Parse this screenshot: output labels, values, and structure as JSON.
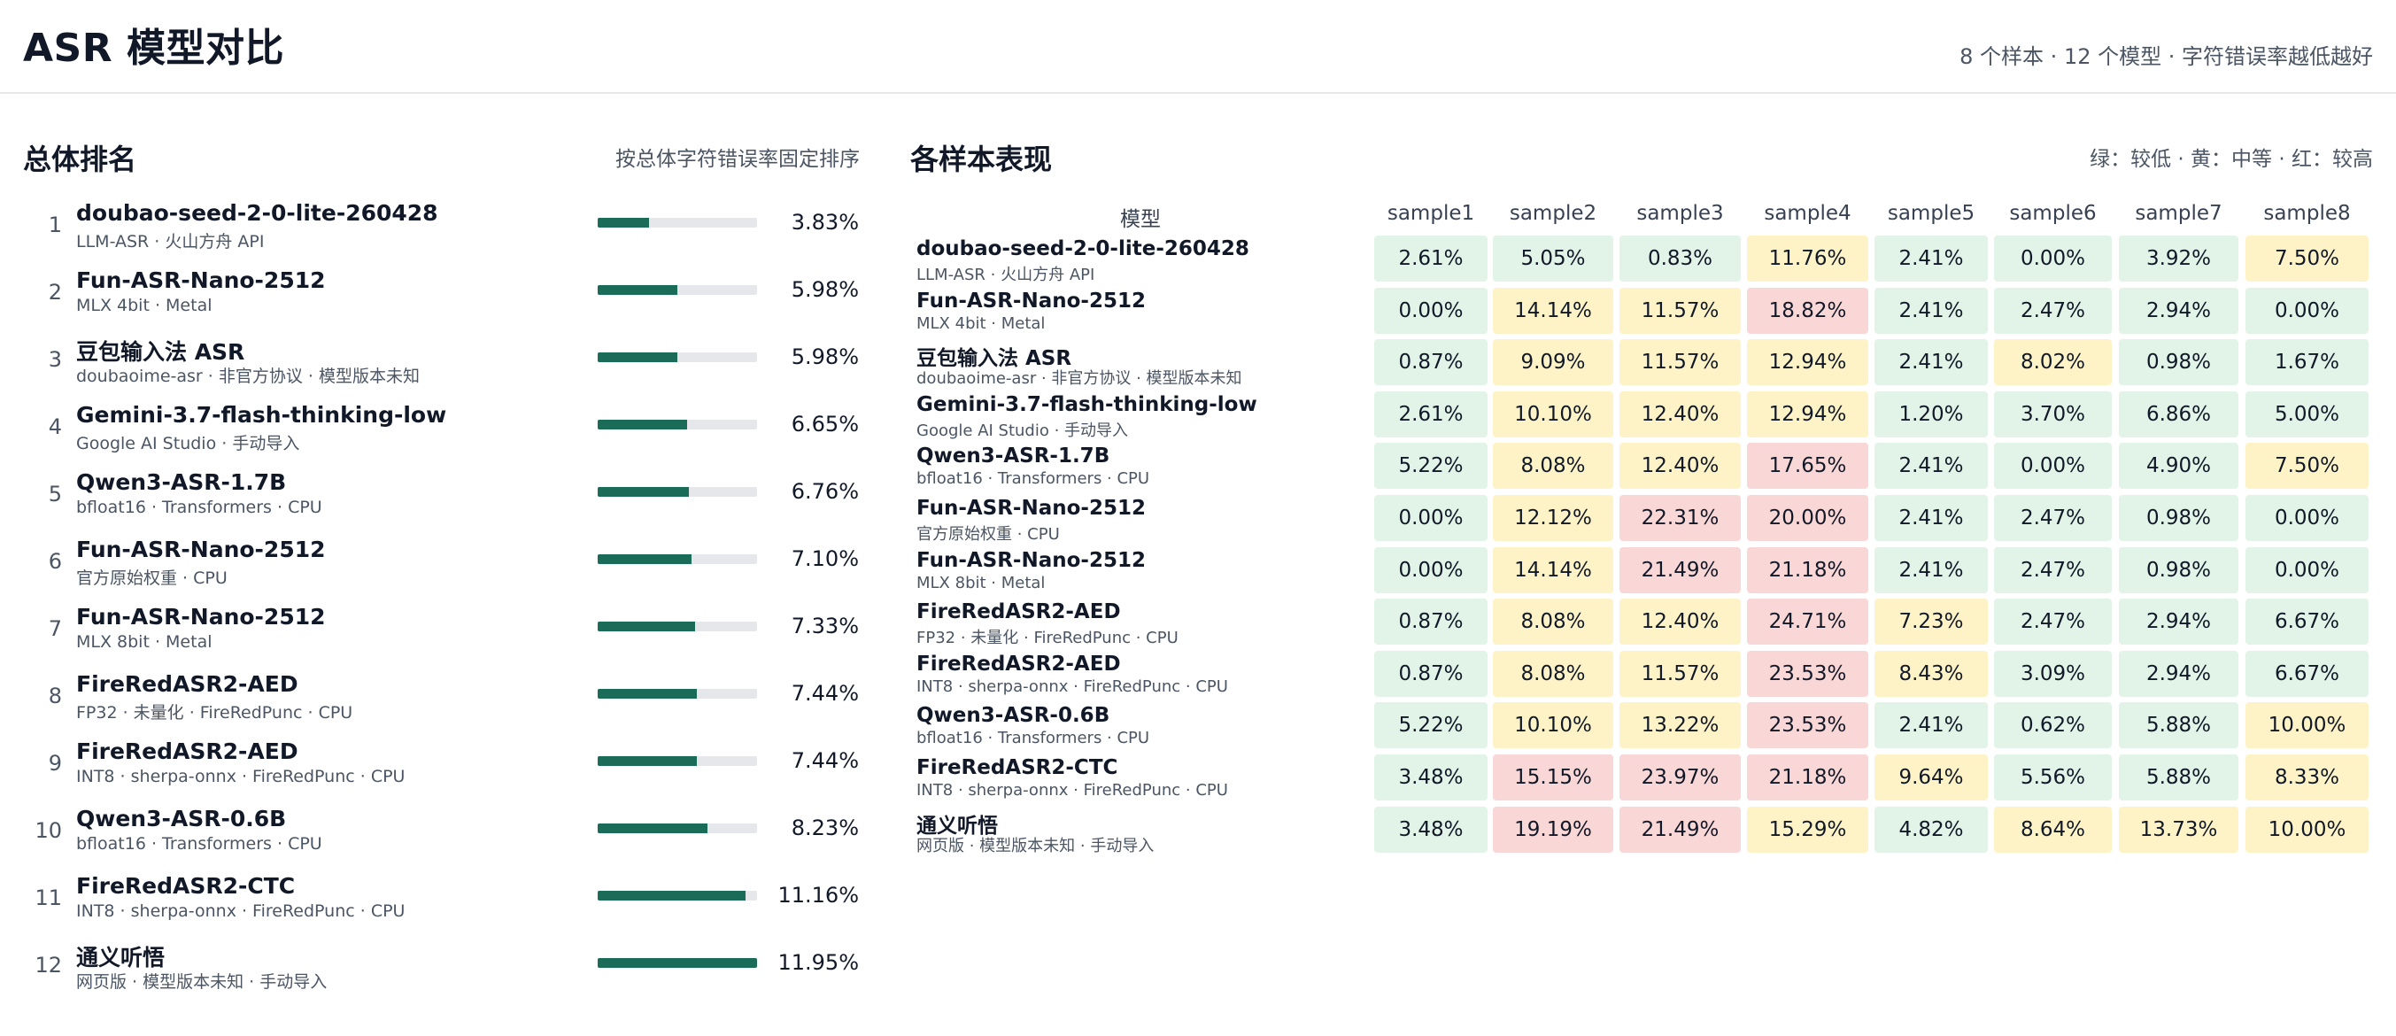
{
  "header": {
    "title": "ASR 模型对比",
    "subtitle": "8 个样本 · 12 个模型 · 字符错误率越低越好"
  },
  "ranking": {
    "title": "总体排名",
    "note": "按总体字符错误率固定排序",
    "items": [
      {
        "rank": "1",
        "name": "doubao-seed-2-0-lite-260428",
        "sub": "LLM-ASR · 火山方舟 API",
        "value": "3.83%",
        "fill": 0.32
      },
      {
        "rank": "2",
        "name": "Fun-ASR-Nano-2512",
        "sub": "MLX 4bit · Metal",
        "value": "5.98%",
        "fill": 0.5
      },
      {
        "rank": "3",
        "name": "豆包输入法 ASR",
        "sub": "doubaoime-asr · 非官方协议 · 模型版本未知",
        "value": "5.98%",
        "fill": 0.5
      },
      {
        "rank": "4",
        "name": "Gemini-3.7-flash-thinking-low",
        "sub": "Google AI Studio · 手动导入",
        "value": "6.65%",
        "fill": 0.56
      },
      {
        "rank": "5",
        "name": "Qwen3-ASR-1.7B",
        "sub": "bfloat16 · Transformers · CPU",
        "value": "6.76%",
        "fill": 0.57
      },
      {
        "rank": "6",
        "name": "Fun-ASR-Nano-2512",
        "sub": "官方原始权重 · CPU",
        "value": "7.10%",
        "fill": 0.59
      },
      {
        "rank": "7",
        "name": "Fun-ASR-Nano-2512",
        "sub": "MLX 8bit · Metal",
        "value": "7.33%",
        "fill": 0.61
      },
      {
        "rank": "8",
        "name": "FireRedASR2-AED",
        "sub": "FP32 · 未量化 · FireRedPunc · CPU",
        "value": "7.44%",
        "fill": 0.62
      },
      {
        "rank": "9",
        "name": "FireRedASR2-AED",
        "sub": "INT8 · sherpa-onnx · FireRedPunc · CPU",
        "value": "7.44%",
        "fill": 0.62
      },
      {
        "rank": "10",
        "name": "Qwen3-ASR-0.6B",
        "sub": "bfloat16 · Transformers · CPU",
        "value": "8.23%",
        "fill": 0.69
      },
      {
        "rank": "11",
        "name": "FireRedASR2-CTC",
        "sub": "INT8 · sherpa-onnx · FireRedPunc · CPU",
        "value": "11.16%",
        "fill": 0.93
      },
      {
        "rank": "12",
        "name": "通义听悟",
        "sub": "网页版 · 模型版本未知 · 手动导入",
        "value": "11.95%",
        "fill": 1.0
      }
    ]
  },
  "matrix": {
    "title": "各样本表现",
    "legend": "绿：较低 · 黄：中等 · 红：较高",
    "model_header": "模型",
    "columns": [
      "sample1",
      "sample2",
      "sample3",
      "sample4",
      "sample5",
      "sample6",
      "sample7",
      "sample8"
    ],
    "colors": {
      "green": "#e2f3e8",
      "yellow": "#fef3c7",
      "red": "#fad7d7"
    },
    "rows": [
      {
        "name": "doubao-seed-2-0-lite-260428",
        "sub": "LLM-ASR · 火山方舟 API",
        "cells": [
          [
            "2.61%",
            "green"
          ],
          [
            "5.05%",
            "green"
          ],
          [
            "0.83%",
            "green"
          ],
          [
            "11.76%",
            "yellow"
          ],
          [
            "2.41%",
            "green"
          ],
          [
            "0.00%",
            "green"
          ],
          [
            "3.92%",
            "green"
          ],
          [
            "7.50%",
            "yellow"
          ]
        ]
      },
      {
        "name": "Fun-ASR-Nano-2512",
        "sub": "MLX 4bit · Metal",
        "cells": [
          [
            "0.00%",
            "green"
          ],
          [
            "14.14%",
            "yellow"
          ],
          [
            "11.57%",
            "yellow"
          ],
          [
            "18.82%",
            "red"
          ],
          [
            "2.41%",
            "green"
          ],
          [
            "2.47%",
            "green"
          ],
          [
            "2.94%",
            "green"
          ],
          [
            "0.00%",
            "green"
          ]
        ]
      },
      {
        "name": "豆包输入法 ASR",
        "sub": "doubaoime-asr · 非官方协议 · 模型版本未知",
        "cells": [
          [
            "0.87%",
            "green"
          ],
          [
            "9.09%",
            "yellow"
          ],
          [
            "11.57%",
            "yellow"
          ],
          [
            "12.94%",
            "yellow"
          ],
          [
            "2.41%",
            "green"
          ],
          [
            "8.02%",
            "yellow"
          ],
          [
            "0.98%",
            "green"
          ],
          [
            "1.67%",
            "green"
          ]
        ]
      },
      {
        "name": "Gemini-3.7-flash-thinking-low",
        "sub": "Google AI Studio · 手动导入",
        "cells": [
          [
            "2.61%",
            "green"
          ],
          [
            "10.10%",
            "yellow"
          ],
          [
            "12.40%",
            "yellow"
          ],
          [
            "12.94%",
            "yellow"
          ],
          [
            "1.20%",
            "green"
          ],
          [
            "3.70%",
            "green"
          ],
          [
            "6.86%",
            "green"
          ],
          [
            "5.00%",
            "green"
          ]
        ]
      },
      {
        "name": "Qwen3-ASR-1.7B",
        "sub": "bfloat16 · Transformers · CPU",
        "cells": [
          [
            "5.22%",
            "green"
          ],
          [
            "8.08%",
            "yellow"
          ],
          [
            "12.40%",
            "yellow"
          ],
          [
            "17.65%",
            "red"
          ],
          [
            "2.41%",
            "green"
          ],
          [
            "0.00%",
            "green"
          ],
          [
            "4.90%",
            "green"
          ],
          [
            "7.50%",
            "yellow"
          ]
        ]
      },
      {
        "name": "Fun-ASR-Nano-2512",
        "sub": "官方原始权重 · CPU",
        "cells": [
          [
            "0.00%",
            "green"
          ],
          [
            "12.12%",
            "yellow"
          ],
          [
            "22.31%",
            "red"
          ],
          [
            "20.00%",
            "red"
          ],
          [
            "2.41%",
            "green"
          ],
          [
            "2.47%",
            "green"
          ],
          [
            "0.98%",
            "green"
          ],
          [
            "0.00%",
            "green"
          ]
        ]
      },
      {
        "name": "Fun-ASR-Nano-2512",
        "sub": "MLX 8bit · Metal",
        "cells": [
          [
            "0.00%",
            "green"
          ],
          [
            "14.14%",
            "yellow"
          ],
          [
            "21.49%",
            "red"
          ],
          [
            "21.18%",
            "red"
          ],
          [
            "2.41%",
            "green"
          ],
          [
            "2.47%",
            "green"
          ],
          [
            "0.98%",
            "green"
          ],
          [
            "0.00%",
            "green"
          ]
        ]
      },
      {
        "name": "FireRedASR2-AED",
        "sub": "FP32 · 未量化 · FireRedPunc · CPU",
        "cells": [
          [
            "0.87%",
            "green"
          ],
          [
            "8.08%",
            "yellow"
          ],
          [
            "12.40%",
            "yellow"
          ],
          [
            "24.71%",
            "red"
          ],
          [
            "7.23%",
            "yellow"
          ],
          [
            "2.47%",
            "green"
          ],
          [
            "2.94%",
            "green"
          ],
          [
            "6.67%",
            "green"
          ]
        ]
      },
      {
        "name": "FireRedASR2-AED",
        "sub": "INT8 · sherpa-onnx · FireRedPunc · CPU",
        "cells": [
          [
            "0.87%",
            "green"
          ],
          [
            "8.08%",
            "yellow"
          ],
          [
            "11.57%",
            "yellow"
          ],
          [
            "23.53%",
            "red"
          ],
          [
            "8.43%",
            "yellow"
          ],
          [
            "3.09%",
            "green"
          ],
          [
            "2.94%",
            "green"
          ],
          [
            "6.67%",
            "green"
          ]
        ]
      },
      {
        "name": "Qwen3-ASR-0.6B",
        "sub": "bfloat16 · Transformers · CPU",
        "cells": [
          [
            "5.22%",
            "green"
          ],
          [
            "10.10%",
            "yellow"
          ],
          [
            "13.22%",
            "yellow"
          ],
          [
            "23.53%",
            "red"
          ],
          [
            "2.41%",
            "green"
          ],
          [
            "0.62%",
            "green"
          ],
          [
            "5.88%",
            "green"
          ],
          [
            "10.00%",
            "yellow"
          ]
        ]
      },
      {
        "name": "FireRedASR2-CTC",
        "sub": "INT8 · sherpa-onnx · FireRedPunc · CPU",
        "cells": [
          [
            "3.48%",
            "green"
          ],
          [
            "15.15%",
            "red"
          ],
          [
            "23.97%",
            "red"
          ],
          [
            "21.18%",
            "red"
          ],
          [
            "9.64%",
            "yellow"
          ],
          [
            "5.56%",
            "green"
          ],
          [
            "5.88%",
            "green"
          ],
          [
            "8.33%",
            "yellow"
          ]
        ]
      },
      {
        "name": "通义听悟",
        "sub": "网页版 · 模型版本未知 · 手动导入",
        "cells": [
          [
            "3.48%",
            "green"
          ],
          [
            "19.19%",
            "red"
          ],
          [
            "21.49%",
            "red"
          ],
          [
            "15.29%",
            "yellow"
          ],
          [
            "4.82%",
            "green"
          ],
          [
            "8.64%",
            "yellow"
          ],
          [
            "13.73%",
            "yellow"
          ],
          [
            "10.00%",
            "yellow"
          ]
        ]
      }
    ]
  }
}
